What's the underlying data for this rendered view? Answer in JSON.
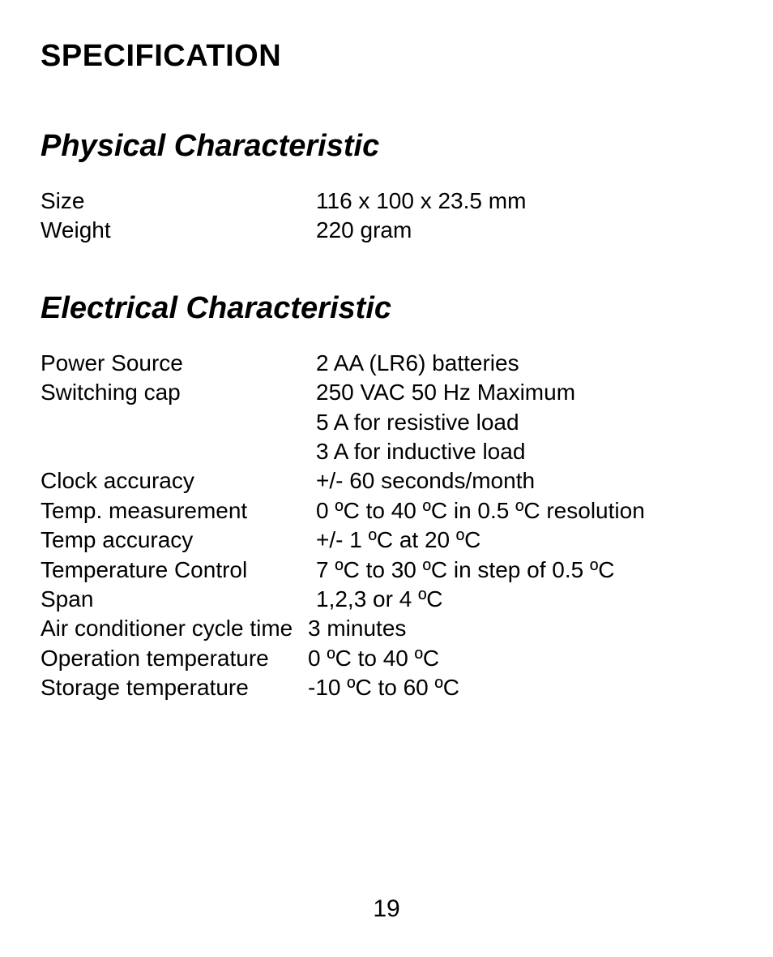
{
  "page": {
    "title": "SPECIFICATION",
    "number": "19"
  },
  "sections": [
    {
      "heading": "Physical Characteristic",
      "rows": [
        {
          "label": "Size",
          "value": "116 x 100 x 23.5 mm"
        },
        {
          "label": "Weight",
          "value": "220 gram"
        }
      ]
    },
    {
      "heading": "Electrical Characteristic",
      "rows": [
        {
          "label": "Power Source",
          "value": "2 AA (LR6) batteries"
        },
        {
          "label": "Switching cap",
          "value": "250 VAC 50 Hz Maximum"
        },
        {
          "label": "",
          "value": "5 A for resistive load"
        },
        {
          "label": "",
          "value": "3 A for inductive load"
        },
        {
          "label": "Clock accuracy",
          "value": "+/- 60 seconds/month"
        },
        {
          "label": "Temp. measurement",
          "value": "0 ºC to 40 ºC in 0.5 ºC resolution"
        },
        {
          "label": "Temp accuracy",
          "value": "+/- 1 ºC at 20 ºC"
        },
        {
          "label": "Temperature Control",
          "value": "7 ºC to 30 ºC in step of 0.5 ºC"
        },
        {
          "label": "Span",
          "value": "1,2,3 or 4 ºC"
        },
        {
          "label": "Air conditioner cycle time",
          "value": "3 minutes",
          "valClass": "val-indent-neg"
        },
        {
          "label": "Operation temperature",
          "value": "0 ºC to 40 ºC",
          "valClass": "val-indent-neg"
        },
        {
          "label": "Storage temperature",
          "value": "-10 ºC to 60 ºC",
          "valClass": "val-indent-neg"
        }
      ]
    }
  ]
}
